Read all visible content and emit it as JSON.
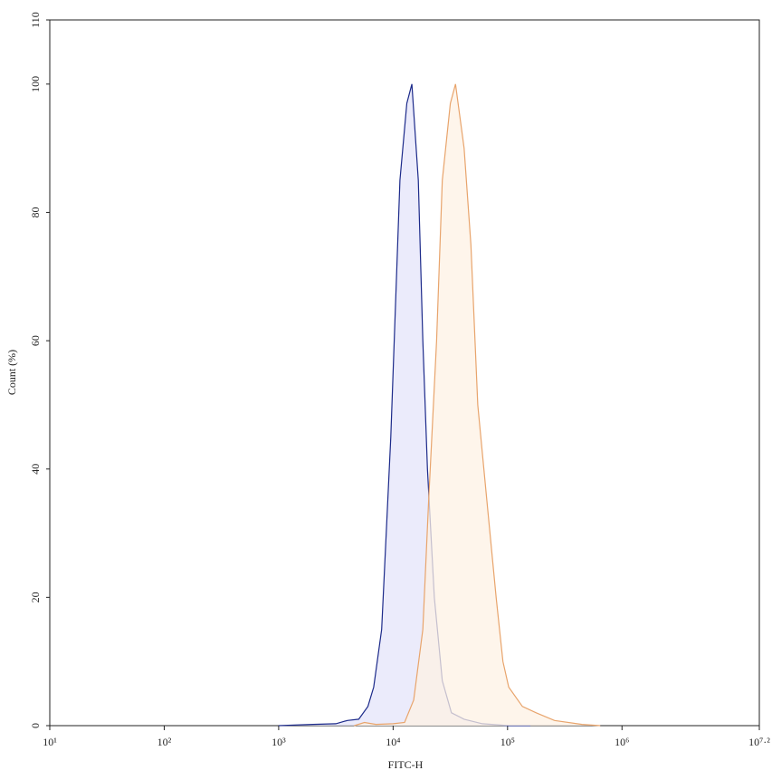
{
  "chart_data": {
    "type": "histogram-overlay",
    "x_label": "FITC-H",
    "y_label": "Count (%)",
    "xscale": "log",
    "xlim": [
      10,
      15848932
    ],
    "xticks": [
      {
        "value": 10,
        "label": "10¹"
      },
      {
        "value": 100,
        "label": "10²"
      },
      {
        "value": 1000,
        "label": "10³"
      },
      {
        "value": 10000,
        "label": "10⁴"
      },
      {
        "value": 100000,
        "label": "10⁵"
      },
      {
        "value": 1000000,
        "label": "10⁶"
      },
      {
        "value": 15848932,
        "label": "10⁷·²"
      }
    ],
    "ylim": [
      0,
      110
    ],
    "yticks": [
      0,
      20,
      40,
      60,
      80,
      100,
      110
    ],
    "series": [
      {
        "color": "#1c2a8a",
        "fill": "#e4e4fa",
        "x": [
          1000,
          1995,
          3162,
          3981,
          5012,
          6026,
          6761,
          7943,
          9550,
          11482,
          13183,
          14588,
          16596,
          18197,
          19953,
          22909,
          26915,
          32359,
          41687,
          60256,
          102329,
          158489
        ],
        "values": [
          0,
          0.2,
          0.3,
          0.8,
          1,
          3,
          6,
          15,
          45,
          85,
          97,
          100,
          85,
          60,
          40,
          20,
          7,
          2,
          1,
          0.3,
          0,
          0
        ]
      },
      {
        "color": "#e8a46c",
        "fill": "#fdf1e4",
        "x": [
          4571,
          5623,
          7079,
          10000,
          12589,
          15136,
          18197,
          20417,
          23988,
          26915,
          31623,
          35075,
          41687,
          47863,
          54954,
          66069,
          79433,
          91201,
          102329,
          134896,
          177828,
          257040,
          446684,
          645654
        ],
        "values": [
          0,
          0.5,
          0.2,
          0.3,
          0.5,
          4,
          15,
          35,
          60,
          85,
          97,
          100,
          90,
          75,
          50,
          35,
          20,
          10,
          6,
          3,
          2,
          0.8,
          0.2,
          0
        ]
      }
    ]
  }
}
